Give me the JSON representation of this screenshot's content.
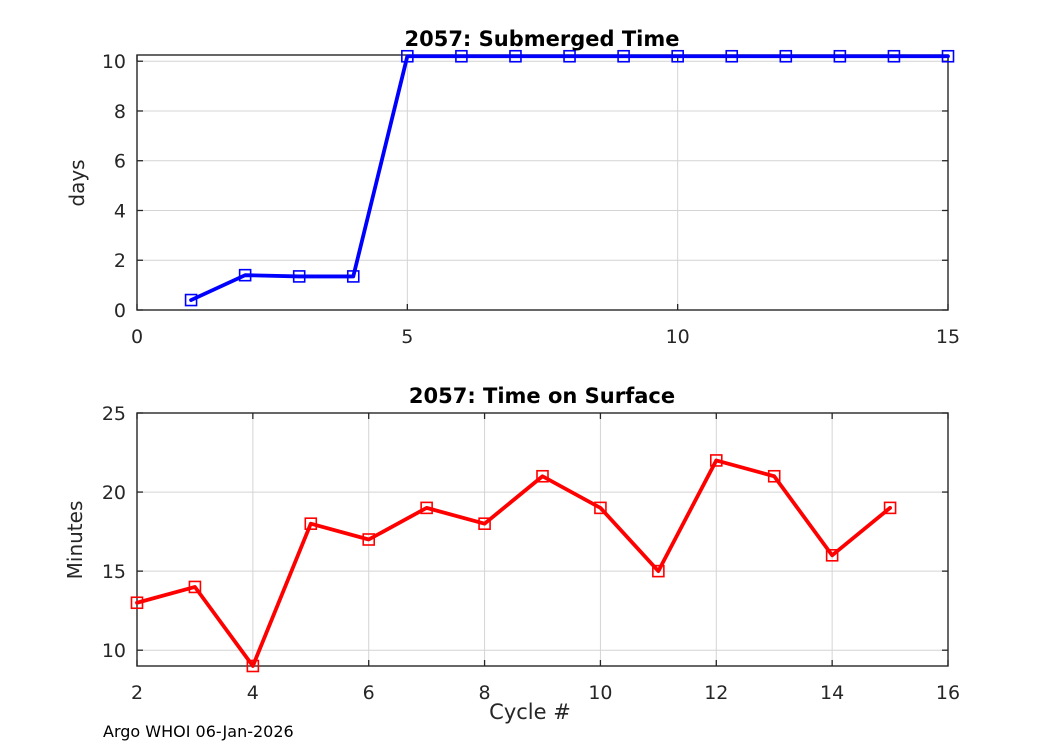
{
  "figure": {
    "background": "#ffffff"
  },
  "colors": {
    "axis": "#262626",
    "grid": "#d4d4d4",
    "tick_label": "#262626",
    "title": "#000000",
    "submerged_line": "#0000ff",
    "surface_line": "#ff0000"
  },
  "footer": {
    "text": "Argo WHOI 06-Jan-2026"
  },
  "chart_data": [
    {
      "type": "line",
      "title": "2057: Submerged Time",
      "xlabel": "",
      "ylabel": "days",
      "x": [
        1,
        2,
        3,
        4,
        5,
        6,
        7,
        8,
        9,
        10,
        11,
        12,
        13,
        14,
        15
      ],
      "values": [
        0.4,
        1.4,
        1.35,
        1.35,
        10.2,
        10.2,
        10.2,
        10.2,
        10.2,
        10.2,
        10.2,
        10.2,
        10.2,
        10.2,
        10.2
      ],
      "xlim": [
        0,
        15
      ],
      "ylim": [
        0,
        10.25
      ],
      "xticks": [
        0,
        5,
        10,
        15
      ],
      "yticks": [
        0,
        2,
        4,
        6,
        8,
        10
      ],
      "line_color": "#0000ff",
      "marker": "square",
      "marker_fill": "none",
      "grid": true,
      "legend": null
    },
    {
      "type": "line",
      "title": "2057: Time on Surface",
      "xlabel": "Cycle #",
      "ylabel": "Minutes",
      "x": [
        2,
        3,
        4,
        5,
        6,
        7,
        8,
        9,
        10,
        11,
        12,
        13,
        14,
        15
      ],
      "values": [
        13,
        14,
        9,
        18,
        17,
        19,
        18,
        21,
        19,
        15,
        22,
        21,
        16,
        19
      ],
      "xlim": [
        2,
        16
      ],
      "ylim": [
        9,
        25
      ],
      "xticks": [
        2,
        4,
        6,
        8,
        10,
        12,
        14,
        16
      ],
      "yticks": [
        10,
        15,
        20,
        25
      ],
      "line_color": "#ff0000",
      "marker": "square",
      "marker_fill": "none",
      "grid": true,
      "legend": null
    }
  ]
}
